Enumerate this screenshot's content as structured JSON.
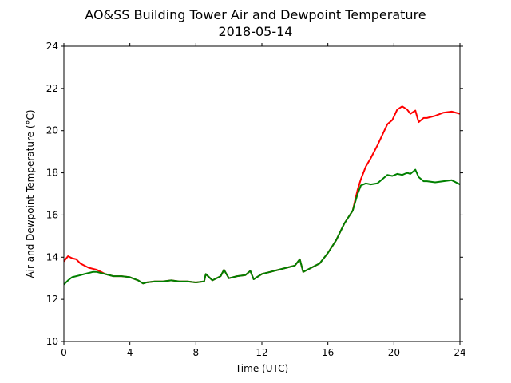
{
  "chart_data": {
    "type": "line",
    "title": "AO&SS Building Tower Air and Dewpoint Temperature",
    "subtitle": "2018-05-14",
    "xlabel": "Time (UTC)",
    "ylabel": "Air and Dewpoint Temperature (°C)",
    "xlim": [
      0,
      24
    ],
    "ylim": [
      10,
      24
    ],
    "xticks": [
      0,
      4,
      8,
      12,
      16,
      20,
      24
    ],
    "yticks": [
      10,
      12,
      14,
      16,
      18,
      20,
      22,
      24
    ],
    "grid": false,
    "colors": {
      "air": "#ff0000",
      "dewpoint": "#008000"
    },
    "series": [
      {
        "key": "air",
        "x": [
          0,
          0.25,
          0.5,
          0.75,
          1.0,
          1.25,
          1.5,
          1.75,
          2.0,
          2.25,
          2.5,
          3.0,
          3.5,
          4.0,
          4.5,
          4.8,
          5.0,
          5.5,
          6.0,
          6.5,
          7.0,
          7.5,
          8.0,
          8.5,
          8.6,
          9.0,
          9.5,
          9.7,
          10.0,
          10.5,
          11.0,
          11.3,
          11.5,
          12.0,
          12.5,
          13.0,
          13.5,
          14.0,
          14.3,
          14.5,
          15.0,
          15.5,
          16.0,
          16.5,
          17.0,
          17.5,
          17.8,
          18.0,
          18.3,
          18.6,
          19.0,
          19.3,
          19.6,
          19.9,
          20.2,
          20.5,
          20.8,
          21.0,
          21.3,
          21.5,
          21.8,
          22.0,
          22.5,
          23.0,
          23.5,
          24.0
        ],
        "y": [
          13.8,
          14.05,
          13.95,
          13.9,
          13.7,
          13.6,
          13.5,
          13.45,
          13.4,
          13.3,
          13.2,
          13.1,
          13.1,
          13.05,
          12.9,
          12.75,
          12.8,
          12.85,
          12.85,
          12.9,
          12.85,
          12.85,
          12.8,
          12.85,
          13.2,
          12.9,
          13.1,
          13.4,
          13.0,
          13.1,
          13.15,
          13.35,
          12.95,
          13.2,
          13.3,
          13.4,
          13.5,
          13.6,
          13.9,
          13.3,
          13.5,
          13.7,
          14.2,
          14.8,
          15.6,
          16.2,
          17.2,
          17.7,
          18.3,
          18.7,
          19.3,
          19.8,
          20.3,
          20.5,
          21.0,
          21.15,
          21.0,
          20.8,
          20.95,
          20.4,
          20.6,
          20.6,
          20.7,
          20.85,
          20.9,
          20.8
        ]
      },
      {
        "key": "dewpoint",
        "x": [
          0,
          0.25,
          0.5,
          0.75,
          1.0,
          1.25,
          1.5,
          1.75,
          2.0,
          2.25,
          2.5,
          3.0,
          3.5,
          4.0,
          4.5,
          4.8,
          5.0,
          5.5,
          6.0,
          6.5,
          7.0,
          7.5,
          8.0,
          8.5,
          8.6,
          9.0,
          9.5,
          9.7,
          10.0,
          10.5,
          11.0,
          11.3,
          11.5,
          12.0,
          12.5,
          13.0,
          13.5,
          14.0,
          14.3,
          14.5,
          15.0,
          15.5,
          16.0,
          16.5,
          17.0,
          17.5,
          17.8,
          18.0,
          18.3,
          18.6,
          19.0,
          19.3,
          19.6,
          19.9,
          20.2,
          20.5,
          20.8,
          21.0,
          21.3,
          21.5,
          21.8,
          22.0,
          22.5,
          23.0,
          23.5,
          24.0
        ],
        "y": [
          12.7,
          12.9,
          13.05,
          13.1,
          13.15,
          13.2,
          13.25,
          13.3,
          13.3,
          13.25,
          13.2,
          13.1,
          13.1,
          13.05,
          12.9,
          12.75,
          12.8,
          12.85,
          12.85,
          12.9,
          12.85,
          12.85,
          12.8,
          12.85,
          13.2,
          12.9,
          13.1,
          13.4,
          13.0,
          13.1,
          13.15,
          13.35,
          12.95,
          13.2,
          13.3,
          13.4,
          13.5,
          13.6,
          13.9,
          13.3,
          13.5,
          13.7,
          14.2,
          14.8,
          15.6,
          16.2,
          17.0,
          17.4,
          17.5,
          17.45,
          17.5,
          17.7,
          17.9,
          17.85,
          17.95,
          17.9,
          18.0,
          17.95,
          18.15,
          17.8,
          17.6,
          17.6,
          17.55,
          17.6,
          17.65,
          17.45
        ]
      }
    ]
  }
}
